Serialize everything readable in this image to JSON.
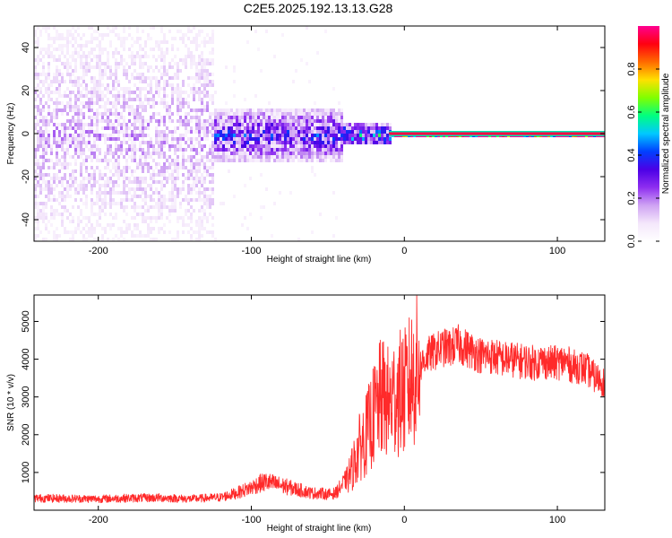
{
  "figure_title": "C2E5.2025.192.13.13.G28",
  "colors": {
    "snr_line": "#ff2a2a",
    "background": "#ffffff",
    "colormap": [
      "#ffffff",
      "#f4e7fb",
      "#cfa3f3",
      "#8e2ef0",
      "#4b00e6",
      "#0040ff",
      "#00c8ff",
      "#00ff80",
      "#80ff00",
      "#ffe000",
      "#ff6a00",
      "#ff0010",
      "#ff0090"
    ]
  },
  "chart_data": [
    {
      "type": "heatmap",
      "title": "",
      "xlabel": "Height of straight line (km)",
      "ylabel": "Frequency (Hz)",
      "xlim": [
        -242,
        131
      ],
      "ylim": [
        -50,
        50
      ],
      "xticks": [
        -200,
        -100,
        0,
        100
      ],
      "xtick_labels": [
        "-200",
        "-100",
        "0",
        "100"
      ],
      "yticks": [
        -40,
        -20,
        0,
        20,
        40
      ],
      "ytick_labels": [
        "-40",
        "-20",
        "0",
        "20",
        "40"
      ],
      "grid": false,
      "colorbar": {
        "label": "Normalized spectral amplitude",
        "range": [
          0,
          1
        ],
        "ticks": [
          0,
          0.2,
          0.4,
          0.6,
          0.8
        ],
        "tick_labels": [
          "0.0",
          "0.2",
          "0.4",
          "0.6",
          "0.8"
        ],
        "placement": "right"
      },
      "description_regions": [
        {
          "x_range": [
            -242,
            -125
          ],
          "freq_spread": 50,
          "amplitude": 0.12
        },
        {
          "x_range": [
            -125,
            -40
          ],
          "freq_spread": 12,
          "amplitude": 0.25
        },
        {
          "x_range": [
            -40,
            -10
          ],
          "freq_spread": 5,
          "amplitude": 0.35
        },
        {
          "x_range": [
            -10,
            131
          ],
          "freq_spread": 1,
          "amplitude": 0.95
        }
      ]
    },
    {
      "type": "line",
      "title": "",
      "xlabel": "Height of straight line (km)",
      "ylabel": "SNR (10 * v/v)",
      "xlim": [
        -242,
        131
      ],
      "ylim": [
        0,
        5700
      ],
      "xticks": [
        -200,
        -100,
        0,
        100
      ],
      "xtick_labels": [
        "-200",
        "-100",
        "0",
        "100"
      ],
      "yticks": [
        1000,
        2000,
        3000,
        4000,
        5000
      ],
      "ytick_labels": [
        "1000",
        "2000",
        "3000",
        "4000",
        "5000"
      ],
      "grid": false,
      "series": [
        {
          "x": [
            -242,
            -220,
            -200,
            -180,
            -160,
            -140,
            -120,
            -110,
            -100,
            -95,
            -90,
            -85,
            -80,
            -75,
            -70,
            -65,
            -60,
            -55,
            -50,
            -45,
            -40,
            -35,
            -30,
            -25,
            -20,
            -15,
            -10,
            -5,
            0,
            5,
            10,
            15,
            20,
            25,
            30,
            35,
            40,
            45,
            50,
            55,
            60,
            65,
            70,
            75,
            80,
            85,
            90,
            95,
            100,
            105,
            110,
            115,
            120,
            125,
            131
          ],
          "y": [
            320,
            310,
            300,
            320,
            330,
            300,
            340,
            450,
            600,
            700,
            750,
            700,
            650,
            600,
            550,
            500,
            450,
            450,
            420,
            450,
            700,
            1000,
            1600,
            2000,
            2500,
            3000,
            2800,
            3100,
            3100,
            3500,
            3800,
            4100,
            4200,
            4300,
            4300,
            4400,
            4300,
            4200,
            4100,
            4100,
            4050,
            4000,
            4000,
            3950,
            3950,
            3900,
            3950,
            3900,
            3900,
            3950,
            3800,
            3800,
            3700,
            3500,
            3400
          ]
        }
      ]
    }
  ]
}
